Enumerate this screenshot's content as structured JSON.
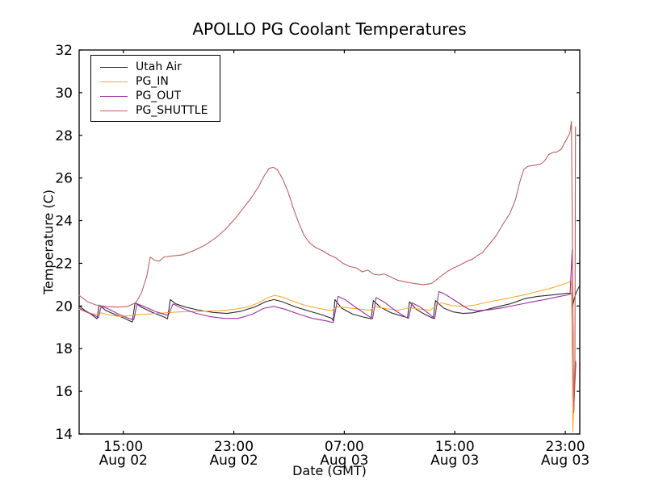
{
  "chart_data": {
    "type": "line",
    "title": "APOLLO PG Coolant Temperatures",
    "xlabel": "Date (GMT)",
    "ylabel": "Temperature (C)",
    "x_unit": "hours since Aug 02 00:00 GMT",
    "xlim_hours": [
      11.8,
      48.05
    ],
    "ylim": [
      14,
      32
    ],
    "yticks": [
      14,
      16,
      18,
      20,
      22,
      24,
      26,
      28,
      30,
      32
    ],
    "xticks": [
      {
        "hour": 15,
        "time": "15:00",
        "date": "Aug 02"
      },
      {
        "hour": 23,
        "time": "23:00",
        "date": "Aug 02"
      },
      {
        "hour": 31,
        "time": "07:00",
        "date": "Aug 03"
      },
      {
        "hour": 39,
        "time": "15:00",
        "date": "Aug 03"
      },
      {
        "hour": 47,
        "time": "23:00",
        "date": "Aug 03"
      }
    ],
    "grid": false,
    "legend_position": "upper left",
    "frame_color": "#000000",
    "background_color": "#ffffff",
    "tick_direction": "in",
    "series": [
      {
        "name": "Utah Air",
        "color": "#2b2b2b",
        "points": [
          [
            11.8,
            20.0
          ],
          [
            12.2,
            19.8
          ],
          [
            12.7,
            19.6
          ],
          [
            13.1,
            19.4
          ],
          [
            13.25,
            20.05
          ],
          [
            13.7,
            19.8
          ],
          [
            14.4,
            19.6
          ],
          [
            15.1,
            19.42
          ],
          [
            15.65,
            19.25
          ],
          [
            15.85,
            20.15
          ],
          [
            16.3,
            19.95
          ],
          [
            17.1,
            19.7
          ],
          [
            17.9,
            19.5
          ],
          [
            18.2,
            19.4
          ],
          [
            18.4,
            20.3
          ],
          [
            18.8,
            20.1
          ],
          [
            19.5,
            19.95
          ],
          [
            20.5,
            19.8
          ],
          [
            21.5,
            19.7
          ],
          [
            22.5,
            19.65
          ],
          [
            23.5,
            19.75
          ],
          [
            24.5,
            19.95
          ],
          [
            25.3,
            20.2
          ],
          [
            25.9,
            20.3
          ],
          [
            26.5,
            20.2
          ],
          [
            27.5,
            19.95
          ],
          [
            28.5,
            19.75
          ],
          [
            29.4,
            19.58
          ],
          [
            30.1,
            19.42
          ],
          [
            30.2,
            19.3
          ],
          [
            30.32,
            20.3
          ],
          [
            30.8,
            19.9
          ],
          [
            31.6,
            19.62
          ],
          [
            32.4,
            19.48
          ],
          [
            32.95,
            19.4
          ],
          [
            33.1,
            20.25
          ],
          [
            33.6,
            19.95
          ],
          [
            34.4,
            19.68
          ],
          [
            35.2,
            19.52
          ],
          [
            35.58,
            19.45
          ],
          [
            35.72,
            20.2
          ],
          [
            36.2,
            19.85
          ],
          [
            36.9,
            19.58
          ],
          [
            37.45,
            19.42
          ],
          [
            37.6,
            20.25
          ],
          [
            38.2,
            19.9
          ],
          [
            38.9,
            19.72
          ],
          [
            39.6,
            19.65
          ],
          [
            40.3,
            19.68
          ],
          [
            41.0,
            19.78
          ],
          [
            42.0,
            19.95
          ],
          [
            43.0,
            20.1
          ],
          [
            44.1,
            20.35
          ],
          [
            45.0,
            20.45
          ],
          [
            45.8,
            20.5
          ],
          [
            46.5,
            20.55
          ],
          [
            47.1,
            20.6
          ],
          [
            47.45,
            20.6
          ],
          [
            47.52,
            19.95
          ],
          [
            47.65,
            20.35
          ],
          [
            47.8,
            20.65
          ],
          [
            48.0,
            20.9
          ]
        ]
      },
      {
        "name": "PG_IN",
        "color": "#ffaa33",
        "points": [
          [
            11.8,
            19.85
          ],
          [
            12.4,
            19.7
          ],
          [
            13.0,
            19.6
          ],
          [
            13.35,
            19.68
          ],
          [
            14.0,
            19.58
          ],
          [
            14.8,
            19.5
          ],
          [
            15.5,
            19.55
          ],
          [
            16.2,
            19.6
          ],
          [
            17.0,
            19.63
          ],
          [
            18.0,
            19.68
          ],
          [
            19.0,
            19.72
          ],
          [
            20.0,
            19.74
          ],
          [
            21.0,
            19.76
          ],
          [
            22.0,
            19.78
          ],
          [
            23.0,
            19.84
          ],
          [
            24.0,
            19.95
          ],
          [
            24.8,
            20.15
          ],
          [
            25.5,
            20.4
          ],
          [
            25.95,
            20.5
          ],
          [
            26.5,
            20.42
          ],
          [
            27.3,
            20.22
          ],
          [
            28.2,
            20.02
          ],
          [
            29.2,
            19.88
          ],
          [
            30.1,
            19.78
          ],
          [
            30.45,
            19.98
          ],
          [
            31.1,
            19.93
          ],
          [
            31.9,
            19.87
          ],
          [
            32.85,
            19.8
          ],
          [
            33.25,
            19.97
          ],
          [
            34.0,
            19.88
          ],
          [
            34.9,
            19.8
          ],
          [
            35.7,
            19.92
          ],
          [
            36.4,
            19.86
          ],
          [
            37.2,
            19.8
          ],
          [
            38.0,
            20.15
          ],
          [
            38.8,
            20.02
          ],
          [
            39.6,
            19.97
          ],
          [
            40.5,
            20.05
          ],
          [
            41.5,
            20.2
          ],
          [
            42.5,
            20.32
          ],
          [
            43.5,
            20.45
          ],
          [
            44.2,
            20.55
          ],
          [
            45.0,
            20.68
          ],
          [
            45.8,
            20.8
          ],
          [
            46.5,
            20.95
          ],
          [
            47.0,
            21.05
          ],
          [
            47.3,
            21.12
          ],
          [
            47.45,
            21.15
          ],
          [
            47.55,
            14.1
          ],
          [
            47.68,
            16.2
          ],
          [
            47.78,
            17.3
          ]
        ]
      },
      {
        "name": "PG_OUT",
        "color": "#9933a0",
        "points": [
          [
            11.8,
            19.9
          ],
          [
            12.4,
            19.7
          ],
          [
            12.95,
            19.55
          ],
          [
            13.2,
            19.45
          ],
          [
            13.4,
            20.0
          ],
          [
            13.95,
            19.85
          ],
          [
            14.7,
            19.6
          ],
          [
            15.4,
            19.42
          ],
          [
            15.75,
            19.35
          ],
          [
            16.0,
            20.1
          ],
          [
            16.6,
            19.95
          ],
          [
            17.4,
            19.72
          ],
          [
            18.25,
            19.55
          ],
          [
            18.6,
            20.1
          ],
          [
            19.3,
            19.88
          ],
          [
            20.3,
            19.65
          ],
          [
            21.3,
            19.5
          ],
          [
            22.3,
            19.42
          ],
          [
            23.3,
            19.42
          ],
          [
            24.3,
            19.6
          ],
          [
            25.2,
            19.9
          ],
          [
            25.9,
            19.98
          ],
          [
            26.7,
            19.85
          ],
          [
            27.7,
            19.62
          ],
          [
            28.7,
            19.42
          ],
          [
            29.7,
            19.3
          ],
          [
            30.2,
            19.22
          ],
          [
            30.55,
            20.45
          ],
          [
            31.1,
            20.28
          ],
          [
            31.9,
            19.9
          ],
          [
            32.7,
            19.55
          ],
          [
            33.05,
            19.4
          ],
          [
            33.3,
            20.4
          ],
          [
            33.9,
            20.18
          ],
          [
            34.7,
            19.78
          ],
          [
            35.4,
            19.5
          ],
          [
            35.65,
            19.42
          ],
          [
            35.9,
            20.15
          ],
          [
            36.5,
            19.95
          ],
          [
            37.2,
            19.6
          ],
          [
            37.55,
            19.4
          ],
          [
            37.85,
            20.68
          ],
          [
            38.3,
            20.55
          ],
          [
            38.9,
            20.3
          ],
          [
            39.5,
            20.05
          ],
          [
            40.0,
            19.85
          ],
          [
            40.6,
            19.78
          ],
          [
            41.5,
            19.82
          ],
          [
            42.5,
            19.92
          ],
          [
            43.5,
            20.05
          ],
          [
            44.5,
            20.18
          ],
          [
            45.5,
            20.3
          ],
          [
            46.4,
            20.42
          ],
          [
            47.0,
            20.5
          ],
          [
            47.35,
            20.55
          ],
          [
            47.5,
            22.65
          ],
          [
            47.62,
            15.1
          ],
          [
            47.75,
            17.4
          ]
        ]
      },
      {
        "name": "PG_SHUTTLE",
        "color": "#c35f5f",
        "points": [
          [
            11.8,
            20.5
          ],
          [
            12.4,
            20.2
          ],
          [
            13.0,
            20.05
          ],
          [
            13.7,
            19.98
          ],
          [
            14.5,
            19.95
          ],
          [
            15.3,
            19.98
          ],
          [
            15.9,
            20.15
          ],
          [
            16.3,
            20.6
          ],
          [
            16.7,
            21.4
          ],
          [
            16.95,
            22.3
          ],
          [
            17.25,
            22.15
          ],
          [
            17.6,
            22.1
          ],
          [
            17.95,
            22.3
          ],
          [
            18.6,
            22.35
          ],
          [
            19.3,
            22.4
          ],
          [
            20.1,
            22.6
          ],
          [
            20.9,
            22.85
          ],
          [
            21.7,
            23.2
          ],
          [
            22.4,
            23.6
          ],
          [
            23.1,
            24.1
          ],
          [
            23.7,
            24.6
          ],
          [
            24.3,
            25.1
          ],
          [
            24.8,
            25.6
          ],
          [
            25.2,
            26.1
          ],
          [
            25.55,
            26.45
          ],
          [
            25.85,
            26.5
          ],
          [
            26.15,
            26.4
          ],
          [
            26.5,
            26.0
          ],
          [
            26.9,
            25.4
          ],
          [
            27.3,
            24.6
          ],
          [
            27.7,
            23.9
          ],
          [
            28.1,
            23.3
          ],
          [
            28.5,
            22.95
          ],
          [
            28.9,
            22.75
          ],
          [
            29.4,
            22.6
          ],
          [
            29.9,
            22.4
          ],
          [
            30.4,
            22.25
          ],
          [
            30.9,
            22.0
          ],
          [
            31.4,
            21.85
          ],
          [
            31.9,
            21.78
          ],
          [
            32.3,
            21.6
          ],
          [
            32.7,
            21.68
          ],
          [
            33.1,
            21.5
          ],
          [
            33.5,
            21.45
          ],
          [
            33.9,
            21.5
          ],
          [
            34.4,
            21.35
          ],
          [
            34.9,
            21.2
          ],
          [
            35.5,
            21.12
          ],
          [
            36.1,
            21.05
          ],
          [
            36.7,
            21.0
          ],
          [
            37.3,
            21.05
          ],
          [
            37.8,
            21.3
          ],
          [
            38.3,
            21.55
          ],
          [
            38.8,
            21.75
          ],
          [
            39.3,
            21.9
          ],
          [
            39.9,
            22.1
          ],
          [
            40.3,
            22.2
          ],
          [
            40.6,
            22.35
          ],
          [
            41.0,
            22.5
          ],
          [
            41.5,
            22.9
          ],
          [
            42.0,
            23.3
          ],
          [
            42.5,
            23.85
          ],
          [
            43.0,
            24.35
          ],
          [
            43.4,
            25.0
          ],
          [
            43.7,
            25.8
          ],
          [
            44.0,
            26.4
          ],
          [
            44.3,
            26.55
          ],
          [
            44.8,
            26.6
          ],
          [
            45.2,
            26.65
          ],
          [
            45.5,
            26.8
          ],
          [
            45.8,
            27.1
          ],
          [
            46.1,
            27.2
          ],
          [
            46.4,
            27.22
          ],
          [
            46.7,
            27.35
          ],
          [
            47.0,
            27.7
          ],
          [
            47.2,
            27.95
          ],
          [
            47.33,
            28.1
          ],
          [
            47.45,
            28.65
          ],
          [
            47.55,
            20.0
          ],
          [
            47.62,
            15.0
          ],
          [
            47.7,
            17.4
          ],
          [
            47.74,
            28.4
          ]
        ]
      }
    ]
  }
}
